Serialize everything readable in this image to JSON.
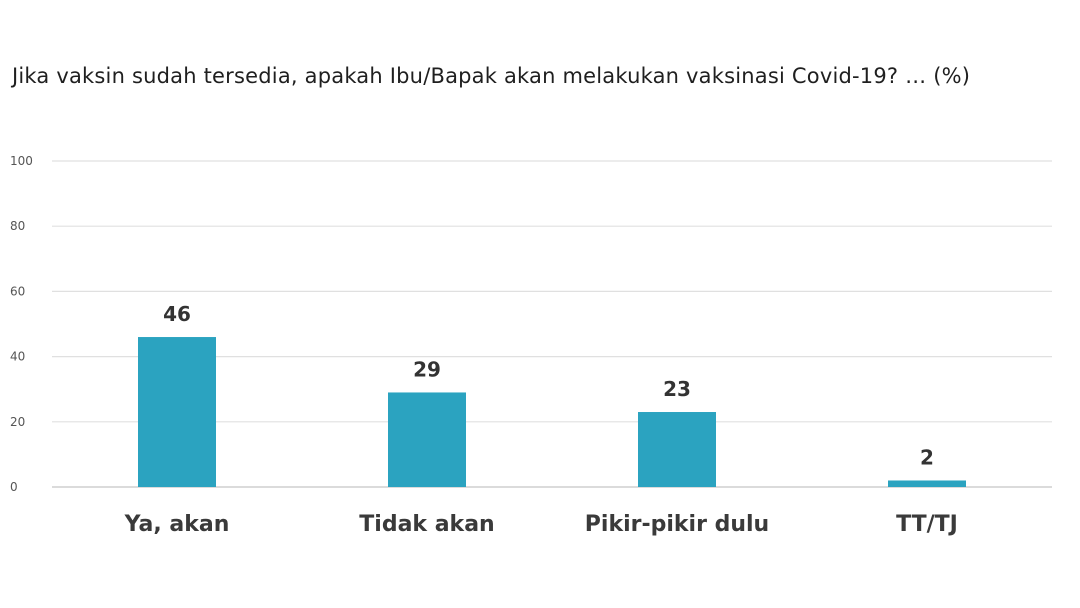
{
  "chart_data": {
    "type": "bar",
    "title": "Jika vaksin sudah tersedia, apakah Ibu/Bapak akan melakukan vaksinasi Covid-19? … (%)",
    "categories": [
      "Ya, akan",
      "Tidak akan",
      "Pikir-pikir dulu",
      "TT/TJ"
    ],
    "values": [
      46,
      29,
      23,
      2
    ],
    "value_labels": [
      "46",
      "29",
      "23",
      "2"
    ],
    "ylim": [
      0,
      100
    ],
    "yticks": [
      "0",
      "20",
      "40",
      "60",
      "80",
      "100"
    ],
    "ytick_values": [
      0,
      20,
      40,
      60,
      80,
      100
    ],
    "xlabel": "",
    "ylabel": "",
    "grid": true,
    "legend": "none",
    "bar_color": "#2ba3c0"
  }
}
